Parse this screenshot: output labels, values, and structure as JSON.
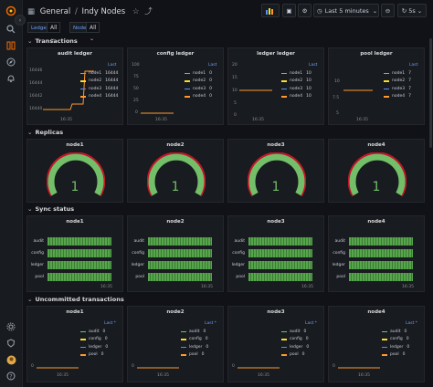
{
  "breadcrumb": {
    "folder": "General",
    "separator": "/",
    "dashboard": "Indy Nodes"
  },
  "toolbar": {
    "time_range": "Last 5 minutes",
    "refresh": "5s"
  },
  "variables": [
    {
      "label": "Ledger",
      "value": "All"
    },
    {
      "label": "Node",
      "value": "All"
    }
  ],
  "rows": {
    "transactions": "Transactions",
    "replicas": "Replicas",
    "sync": "Sync status",
    "uncommitted": "Uncommitted transactions"
  },
  "transactions": {
    "audit": {
      "title": "audit ledger",
      "legend_header": "Last",
      "y_ticks": [
        "16446",
        "16444",
        "16442",
        "16440"
      ],
      "x_tick": "16:35",
      "series": [
        {
          "name": "node1",
          "value": "16444",
          "color": "#73bf69"
        },
        {
          "name": "node2",
          "value": "16444",
          "color": "#fade2a"
        },
        {
          "name": "node3",
          "value": "16444",
          "color": "#5794f2"
        },
        {
          "name": "node4",
          "value": "16444",
          "color": "#ff9830"
        }
      ]
    },
    "config": {
      "title": "config ledger",
      "legend_header": "Last",
      "y_ticks": [
        "100",
        "75",
        "50",
        "25",
        "0"
      ],
      "x_tick": "16:35",
      "series": [
        {
          "name": "node1",
          "value": "0",
          "color": "#73bf69"
        },
        {
          "name": "node2",
          "value": "0",
          "color": "#fade2a"
        },
        {
          "name": "node3",
          "value": "0",
          "color": "#5794f2"
        },
        {
          "name": "node4",
          "value": "0",
          "color": "#ff9830"
        }
      ]
    },
    "ledger": {
      "title": "ledger ledger",
      "legend_header": "Last",
      "y_ticks": [
        "20",
        "15",
        "10",
        "5",
        "0"
      ],
      "x_tick": "16:35",
      "series": [
        {
          "name": "node1",
          "value": "10",
          "color": "#73bf69"
        },
        {
          "name": "node2",
          "value": "10",
          "color": "#fade2a"
        },
        {
          "name": "node3",
          "value": "10",
          "color": "#5794f2"
        },
        {
          "name": "node4",
          "value": "10",
          "color": "#ff9830"
        }
      ]
    },
    "pool": {
      "title": "pool ledger",
      "legend_header": "Last",
      "y_ticks": [
        "10",
        "7.5",
        "5"
      ],
      "x_tick": "16:35",
      "series": [
        {
          "name": "node1",
          "value": "7",
          "color": "#73bf69"
        },
        {
          "name": "node2",
          "value": "7",
          "color": "#fade2a"
        },
        {
          "name": "node3",
          "value": "7",
          "color": "#5794f2"
        },
        {
          "name": "node4",
          "value": "7",
          "color": "#ff9830"
        }
      ]
    }
  },
  "replicas": [
    {
      "title": "node1",
      "value": "1"
    },
    {
      "title": "node2",
      "value": "1"
    },
    {
      "title": "node3",
      "value": "1"
    },
    {
      "title": "node4",
      "value": "1"
    }
  ],
  "sync": {
    "labels": [
      "audit",
      "config",
      "ledger",
      "pool"
    ],
    "x_tick": "16:35",
    "panels": [
      {
        "title": "node1"
      },
      {
        "title": "node2"
      },
      {
        "title": "node3"
      },
      {
        "title": "node4"
      }
    ]
  },
  "uncommitted": {
    "legend_header": "Last *",
    "y_tick": "0",
    "x_tick": "16:35",
    "panels": [
      {
        "title": "node1"
      },
      {
        "title": "node2"
      },
      {
        "title": "node3"
      },
      {
        "title": "node4"
      }
    ],
    "series": [
      {
        "name": "audit",
        "value": "0",
        "color": "#73bf69"
      },
      {
        "name": "config",
        "value": "0",
        "color": "#fade2a"
      },
      {
        "name": "ledger",
        "value": "0",
        "color": "#5794f2"
      },
      {
        "name": "pool",
        "value": "0",
        "color": "#ff9830"
      }
    ]
  },
  "colors": {
    "green": "#73bf69",
    "yellow": "#fade2a",
    "blue": "#5794f2",
    "orange": "#ff9830",
    "gauge_fill": "#73bf69",
    "gauge_threshold": "#c4162a",
    "accent": "#6e9fff"
  }
}
